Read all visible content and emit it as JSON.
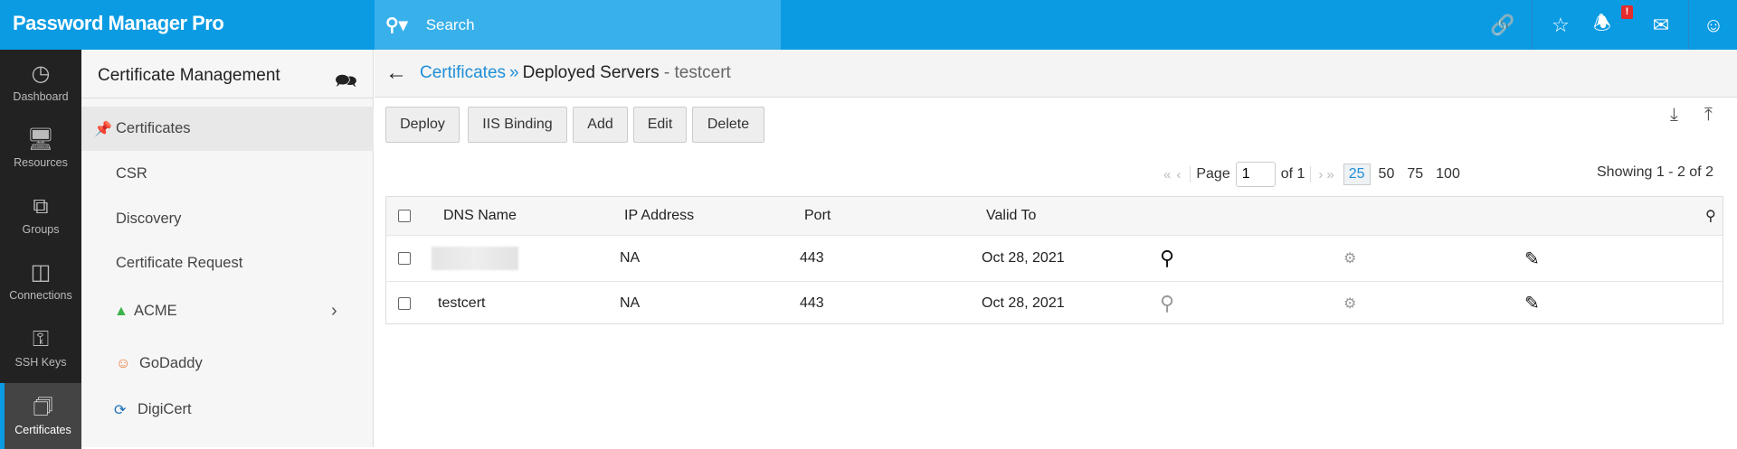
{
  "app": {
    "title": "Password Manager Pro",
    "search_placeholder": "Search",
    "notification_badge": "!",
    "accent": "#0a9be3"
  },
  "header_icons": [
    "link-icon",
    "user-star-icon",
    "bell-icon",
    "mail-icon",
    "user-icon"
  ],
  "rail": [
    {
      "label": "Dashboard",
      "icon": "dashboard-icon"
    },
    {
      "label": "Resources",
      "icon": "monitor-icon"
    },
    {
      "label": "Groups",
      "icon": "groups-icon"
    },
    {
      "label": "Connections",
      "icon": "connections-icon"
    },
    {
      "label": "SSH Keys",
      "icon": "ssh-key-icon"
    },
    {
      "label": "Certificates",
      "icon": "certificate-icon",
      "active": true
    }
  ],
  "sidebar": {
    "title": "Certificate Management",
    "items": [
      {
        "label": "Certificates",
        "active": true
      },
      {
        "label": "CSR"
      },
      {
        "label": "Discovery"
      },
      {
        "label": "Certificate Request"
      },
      {
        "label": "ACME"
      },
      {
        "label": "GoDaddy"
      },
      {
        "label": "DigiCert"
      }
    ]
  },
  "breadcrumb": {
    "link": "Certificates",
    "sep": "»",
    "current": "Deployed Servers",
    "sub": " - testcert"
  },
  "toolbar": {
    "deploy": "Deploy",
    "iis": "IIS Binding",
    "add": "Add",
    "edit": "Edit",
    "delete": "Delete"
  },
  "pager": {
    "page_label": "Page",
    "page": "1",
    "of": "of 1",
    "sizes": [
      "25",
      "50",
      "75",
      "100"
    ],
    "selected": "25",
    "showing": "Showing 1 - 2 of 2"
  },
  "table": {
    "columns": [
      "DNS Name",
      "IP Address",
      "Port",
      "Valid To"
    ],
    "rows": [
      {
        "dns": "",
        "ip": "NA",
        "port": "443",
        "valid": "Oct 28, 2021",
        "key_active": true
      },
      {
        "dns": "testcert",
        "ip": "NA",
        "port": "443",
        "valid": "Oct 28, 2021",
        "key_active": false
      }
    ]
  }
}
